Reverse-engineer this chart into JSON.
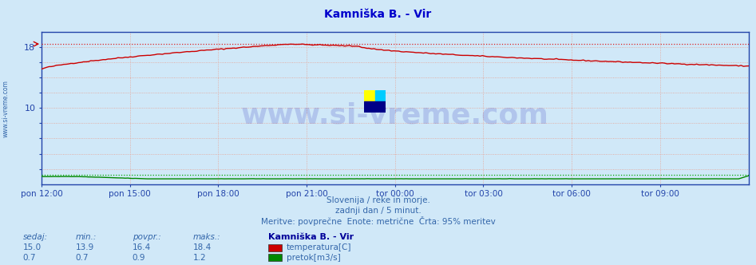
{
  "title": "Kamniška B. - Vir",
  "title_color": "#0000cc",
  "bg_color": "#d0e8f8",
  "plot_bg_color": "#d0e8f8",
  "grid_color": "#e8a090",
  "border_color": "#2244aa",
  "ylim": [
    0,
    20
  ],
  "ytick_positions": [
    2,
    4,
    6,
    8,
    10,
    12,
    14,
    16,
    18
  ],
  "ytick_labels": [
    "",
    "",
    "",
    "",
    "10",
    "",
    "",
    "",
    "18"
  ],
  "xlabel_color": "#2244aa",
  "xtick_labels": [
    "pon 12:00",
    "pon 15:00",
    "pon 18:00",
    "pon 21:00",
    "tor 00:00",
    "tor 03:00",
    "tor 06:00",
    "tor 09:00"
  ],
  "temp_max_line": 18.4,
  "temp_max_line_color": "#dd2222",
  "temp_line_color": "#cc0000",
  "flow_line_color": "#008800",
  "flow_max_line_color": "#00aa00",
  "watermark": "www.si-vreme.com",
  "watermark_color": "#0000aa",
  "watermark_alpha": 0.15,
  "subtitle1": "Slovenija / reke in morje.",
  "subtitle2": "zadnji dan / 5 minut.",
  "subtitle3": "Meritve: povprečne  Enote: metrične  Črta: 95% meritev",
  "subtitle_color": "#3366aa",
  "legend_title": "Kamniška B. - Vir",
  "legend_title_color": "#000099",
  "legend_color": "#3366aa",
  "stats_color": "#3366aa",
  "stats_label": [
    "sedaj:",
    "min.:",
    "povpr.:",
    "maks.:"
  ],
  "stats_temp": [
    15.0,
    13.9,
    16.4,
    18.4
  ],
  "stats_flow": [
    0.7,
    0.7,
    0.9,
    1.2
  ],
  "temp_label": "temperatura[C]",
  "flow_label": "pretok[m3/s]",
  "temp_color_box": "#cc0000",
  "flow_color_box": "#008800",
  "left_label": "www.si-vreme.com",
  "left_label_color": "#3366aa",
  "logo_yellow": "#ffff00",
  "logo_cyan": "#00ccff",
  "logo_blue": "#000088"
}
